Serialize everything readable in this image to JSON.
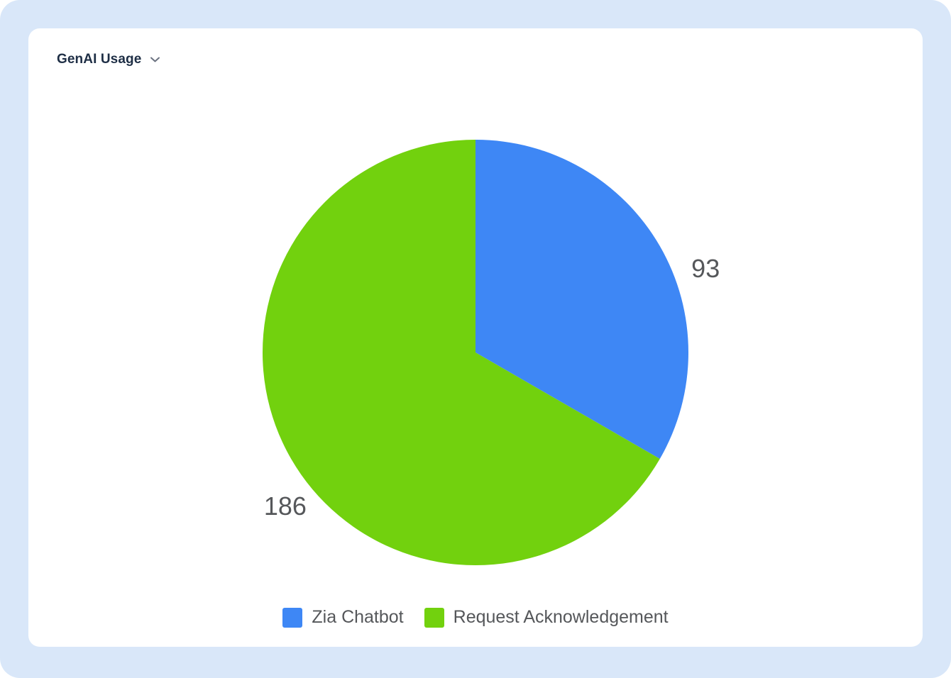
{
  "header": {
    "title": "GenAI Usage",
    "dropdown_icon": "chevron-down-icon"
  },
  "colors": {
    "page_background": "#d9e7f9",
    "card_background": "#ffffff",
    "title_text": "#1e2e45",
    "value_label_text": "#55575a",
    "legend_text": "#55575a",
    "chevron": "#6b7280"
  },
  "chart_data": {
    "type": "pie",
    "title": "GenAI Usage",
    "series": [
      {
        "name": "Zia Chatbot",
        "value": 93,
        "color": "#3e87f5"
      },
      {
        "name": "Request Acknowledgement",
        "value": 186,
        "color": "#72d10e"
      }
    ],
    "total": 279,
    "start_angle_deg": 0,
    "direction": "clockwise",
    "data_labels": "outside",
    "legend_position": "bottom"
  }
}
